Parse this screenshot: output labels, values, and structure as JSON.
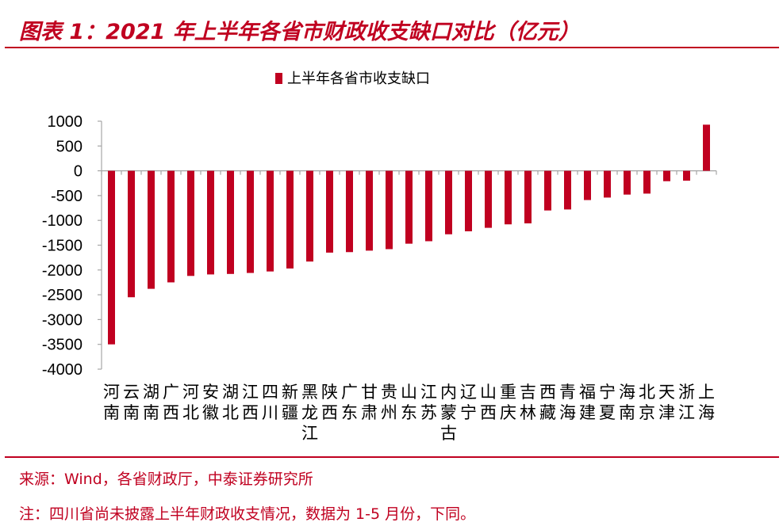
{
  "figure_title": "图表 1：2021 年上半年各省市财政收支缺口对比（亿元）",
  "source": "来源：Wind，各省财政厅，中泰证券研究所",
  "note": "注：四川省尚未披露上半年财政收支情况，数据为 1-5 月份，下同。",
  "colors": {
    "bar": "#c00020",
    "accent": "#c00020",
    "axis": "#a6a6a6",
    "text": "#000000"
  },
  "chart_data": {
    "type": "bar",
    "title": "",
    "legend": {
      "position": "top-center",
      "entries": [
        "上半年各省市收支缺口"
      ]
    },
    "xlabel": "",
    "ylabel": "",
    "ylim": [
      -4000,
      1000
    ],
    "yticks": [
      1000,
      500,
      0,
      -500,
      -1000,
      -1500,
      -2000,
      -2500,
      -3000,
      -3500,
      -4000
    ],
    "grid": false,
    "categories": [
      "河南",
      "云南",
      "湖南",
      "广西",
      "河北",
      "安徽",
      "湖北",
      "江西",
      "四川",
      "新疆",
      "黑龙江",
      "陕西",
      "广东",
      "甘肃",
      "贵州",
      "山东",
      "江苏",
      "内蒙古",
      "辽宁",
      "山西",
      "重庆",
      "吉林",
      "西藏",
      "青海",
      "福建",
      "宁夏",
      "海南",
      "北京",
      "天津",
      "浙江",
      "上海"
    ],
    "series": [
      {
        "name": "上半年各省市收支缺口",
        "values": [
          -3500,
          -2550,
          -2380,
          -2250,
          -2120,
          -2090,
          -2080,
          -2060,
          -2030,
          -1970,
          -1830,
          -1650,
          -1640,
          -1610,
          -1580,
          -1470,
          -1420,
          -1280,
          -1220,
          -1150,
          -1080,
          -1060,
          -800,
          -780,
          -590,
          -540,
          -480,
          -460,
          -210,
          -200,
          930
        ]
      }
    ]
  }
}
